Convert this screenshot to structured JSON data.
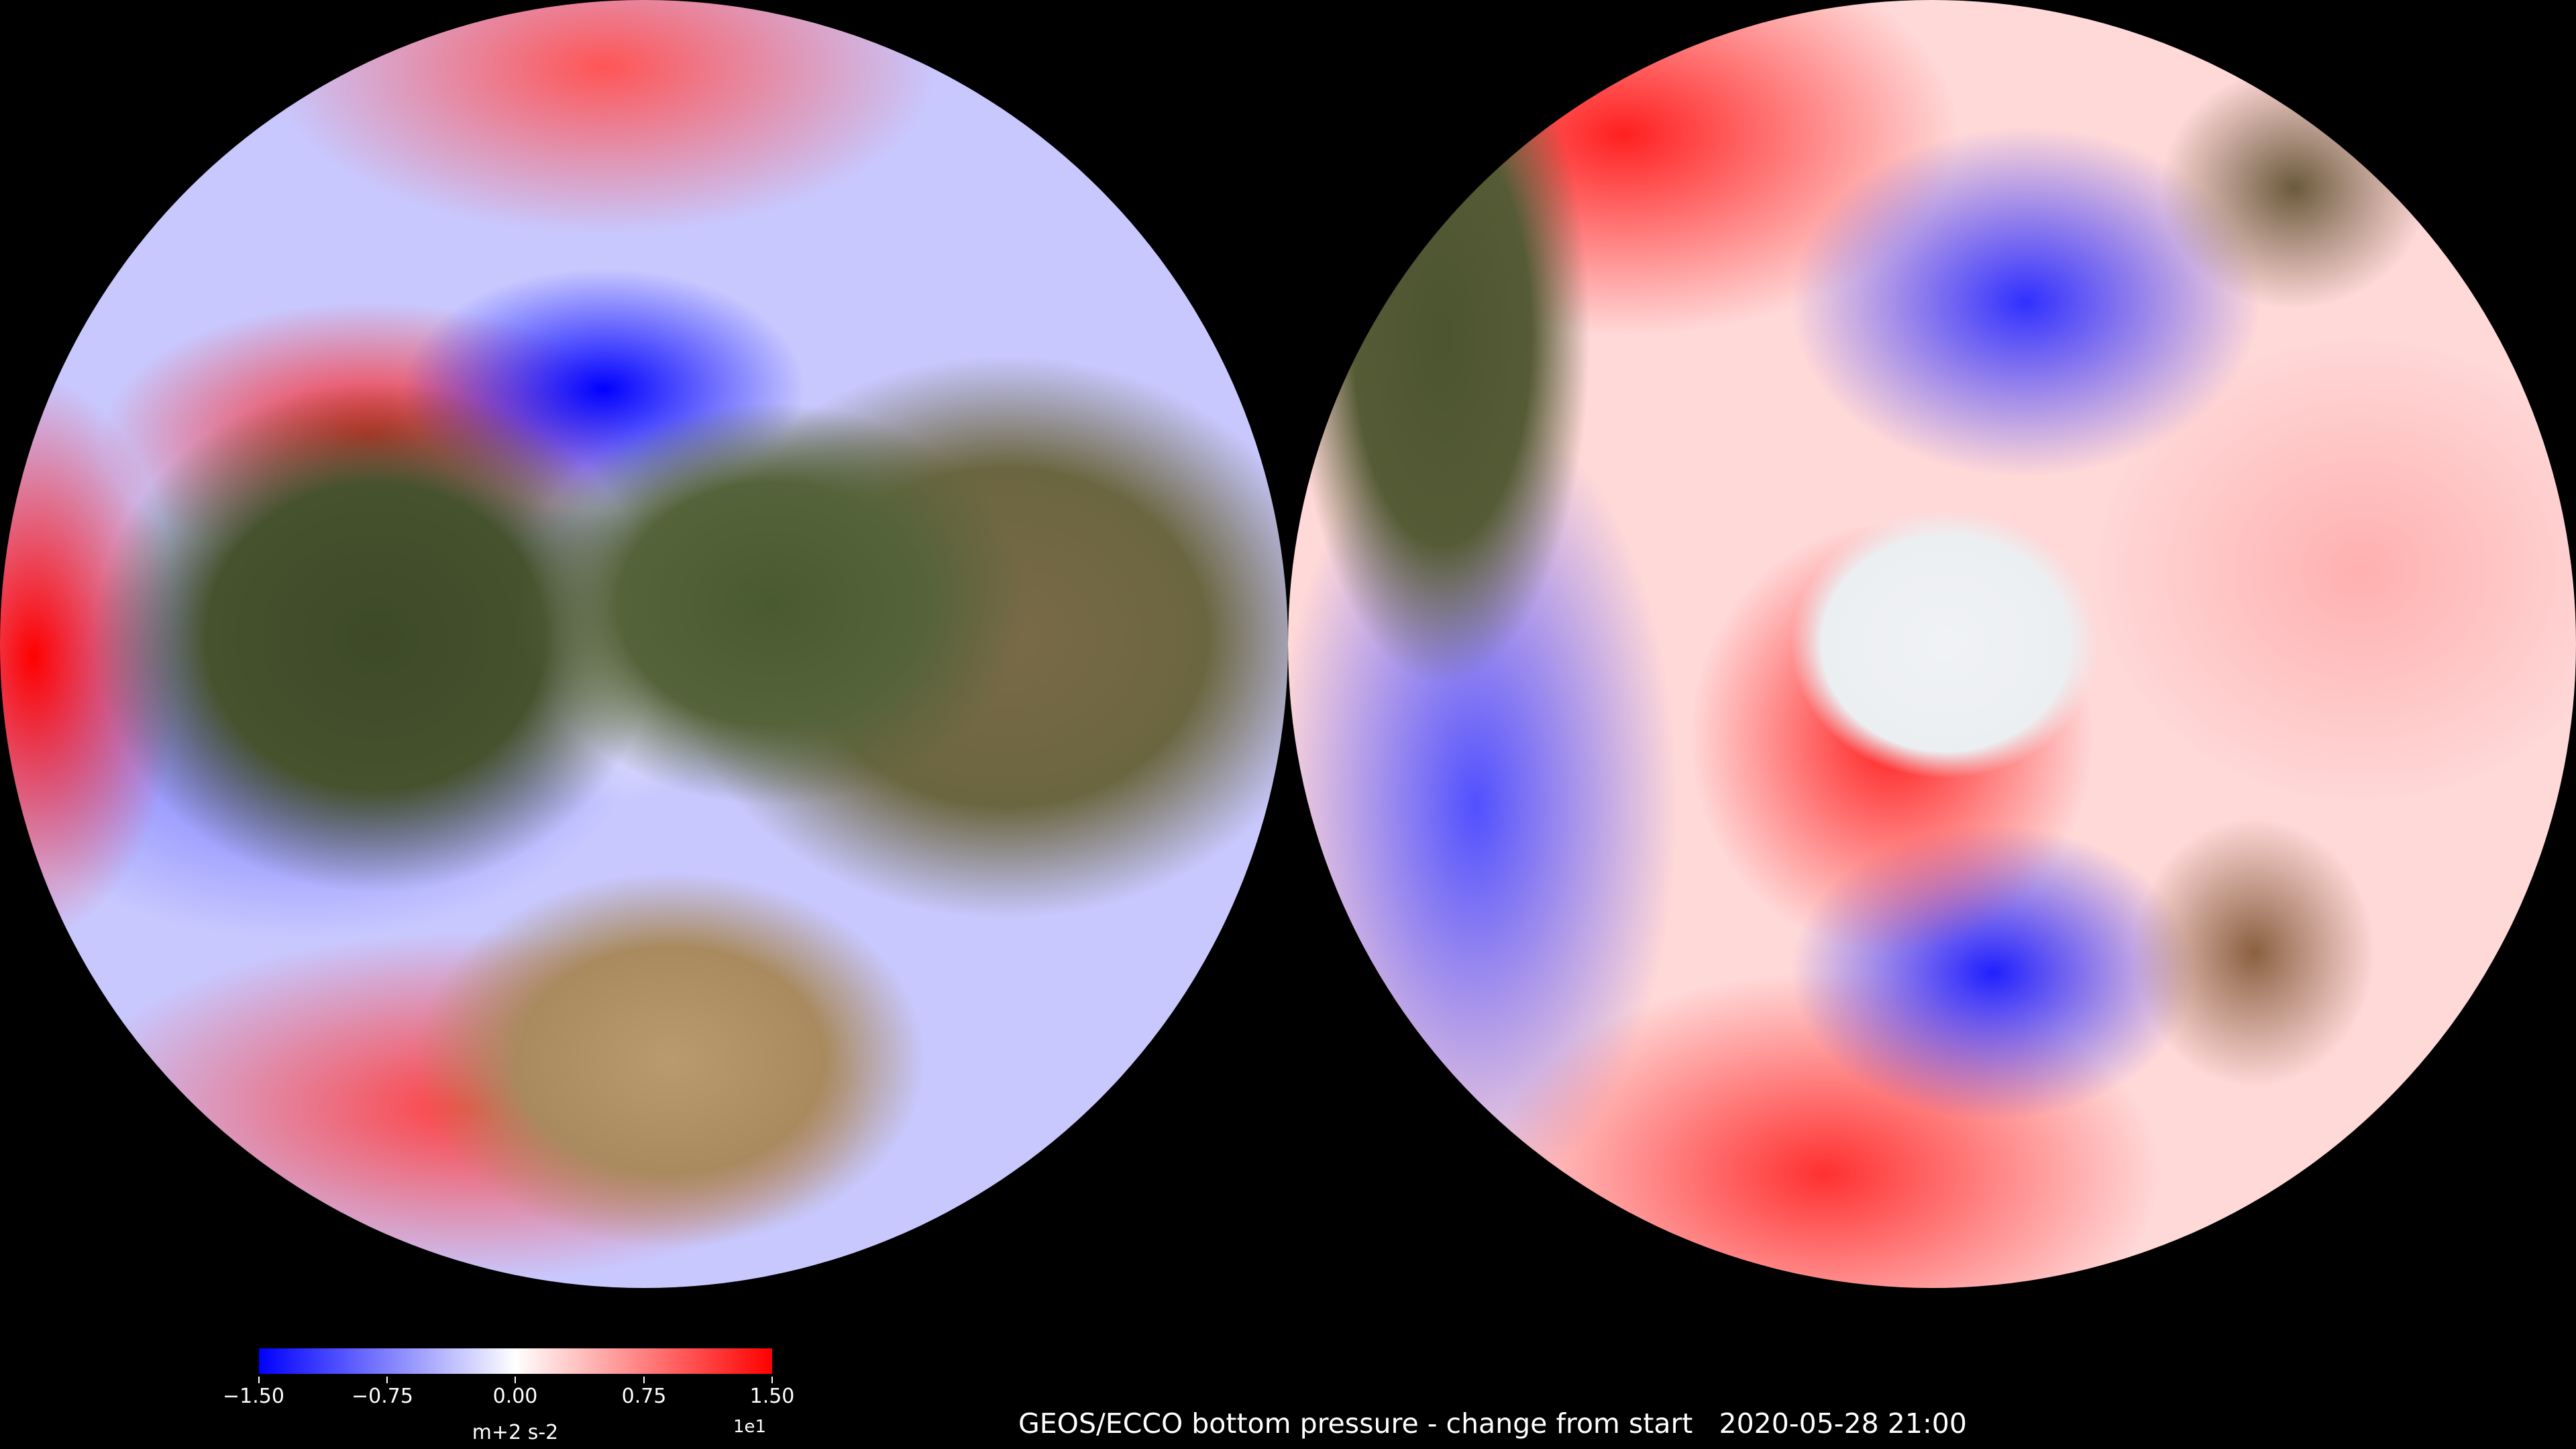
{
  "title": "GEOS/ECCO bottom pressure - change from start   2020-05-28 21:00",
  "panels": [
    "north-polar-view",
    "south-polar-view"
  ],
  "colorbar": {
    "ticks": [
      "−1.50",
      "−0.75",
      "0.00",
      "0.75",
      "1.50"
    ],
    "exponent": "1e1",
    "unit": "m+2 s-2",
    "colors": {
      "min": "#0000ff",
      "mid": "#ffffff",
      "max": "#ff0000"
    }
  }
}
